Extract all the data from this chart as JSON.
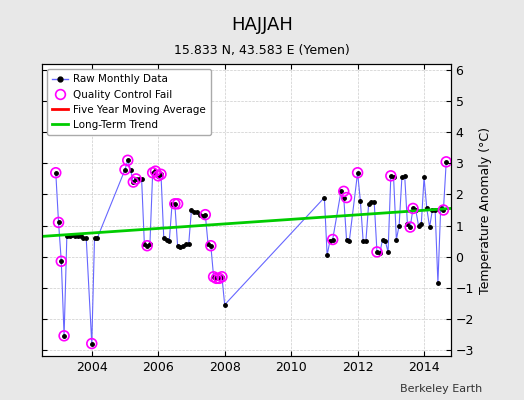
{
  "title": "HAJJAH",
  "subtitle": "15.833 N, 43.583 E (Yemen)",
  "ylabel": "Temperature Anomaly (°C)",
  "credit": "Berkeley Earth",
  "ylim": [
    -3.2,
    6.2
  ],
  "xlim": [
    2002.5,
    2014.8
  ],
  "xticks": [
    2004,
    2006,
    2008,
    2010,
    2012,
    2014
  ],
  "yticks": [
    -3,
    -2,
    -1,
    0,
    1,
    2,
    3,
    4,
    5,
    6
  ],
  "bg_color": "#e8e8e8",
  "plot_bg_color": "#ffffff",
  "raw_x": [
    2002.917,
    2003.0,
    2003.083,
    2003.167,
    2003.25,
    2003.333,
    2003.417,
    2003.5,
    2003.583,
    2003.667,
    2003.75,
    2003.833,
    2004.0,
    2004.083,
    2004.167,
    2005.0,
    2005.083,
    2005.167,
    2005.25,
    2005.333,
    2005.417,
    2005.5,
    2005.583,
    2005.667,
    2005.75,
    2005.833,
    2005.917,
    2006.0,
    2006.083,
    2006.167,
    2006.25,
    2006.333,
    2006.417,
    2006.5,
    2006.583,
    2006.667,
    2006.75,
    2006.833,
    2006.917,
    2007.0,
    2007.083,
    2007.167,
    2007.25,
    2007.333,
    2007.417,
    2007.5,
    2007.583,
    2007.667,
    2007.75,
    2007.833,
    2007.917,
    2008.0,
    2011.0,
    2011.083,
    2011.167,
    2011.25,
    2011.5,
    2011.583,
    2011.667,
    2011.75,
    2012.0,
    2012.083,
    2012.167,
    2012.25,
    2012.333,
    2012.417,
    2012.5,
    2012.583,
    2012.667,
    2012.75,
    2012.833,
    2012.917,
    2013.0,
    2013.083,
    2013.167,
    2013.25,
    2013.333,
    2013.417,
    2013.5,
    2013.583,
    2013.667,
    2013.75,
    2013.833,
    2013.917,
    2014.0,
    2014.083,
    2014.167,
    2014.25,
    2014.333,
    2014.417,
    2014.5,
    2014.583,
    2014.667
  ],
  "raw_y": [
    2.7,
    1.1,
    -0.15,
    -2.55,
    0.65,
    0.65,
    0.7,
    0.65,
    0.65,
    0.65,
    0.6,
    0.6,
    -2.8,
    0.6,
    0.6,
    2.8,
    3.1,
    2.8,
    2.4,
    2.5,
    2.5,
    2.5,
    0.4,
    0.35,
    0.4,
    2.7,
    2.75,
    2.6,
    2.65,
    0.6,
    0.55,
    0.5,
    1.7,
    1.7,
    0.35,
    0.3,
    0.35,
    0.4,
    0.4,
    1.5,
    1.45,
    1.45,
    1.35,
    1.3,
    1.35,
    0.4,
    0.35,
    -0.65,
    -0.7,
    -0.7,
    -0.65,
    -1.55,
    1.9,
    0.05,
    0.5,
    0.55,
    2.1,
    1.9,
    0.55,
    0.5,
    2.7,
    1.8,
    0.5,
    0.5,
    1.7,
    1.75,
    1.75,
    0.15,
    0.1,
    0.55,
    0.5,
    0.15,
    2.6,
    2.55,
    0.55,
    1.0,
    2.55,
    2.6,
    1.05,
    0.95,
    1.55,
    1.5,
    1.0,
    1.05,
    2.55,
    1.55,
    0.95,
    1.5,
    1.5,
    -0.85,
    1.55,
    1.5,
    3.05
  ],
  "qc_fail_x": [
    2002.917,
    2003.0,
    2003.083,
    2003.167,
    2004.0,
    2005.0,
    2005.083,
    2005.25,
    2005.333,
    2005.667,
    2005.833,
    2005.917,
    2006.0,
    2006.083,
    2006.5,
    2006.583,
    2007.417,
    2007.583,
    2007.667,
    2007.75,
    2007.833,
    2007.917,
    2011.25,
    2011.583,
    2011.667,
    2012.0,
    2012.583,
    2013.0,
    2013.583,
    2013.667,
    2014.583,
    2014.667
  ],
  "qc_fail_y": [
    2.7,
    1.1,
    -0.15,
    -2.55,
    -2.8,
    2.8,
    3.1,
    2.4,
    2.5,
    0.35,
    2.7,
    2.75,
    2.6,
    2.65,
    1.7,
    1.7,
    1.35,
    0.35,
    -0.65,
    -0.7,
    -0.7,
    -0.65,
    0.55,
    2.1,
    1.9,
    2.7,
    0.15,
    2.6,
    0.95,
    1.55,
    1.5,
    3.05
  ],
  "trend_x": [
    2002.5,
    2014.8
  ],
  "trend_y": [
    0.65,
    1.55
  ],
  "ma_color": "#ff0000",
  "trend_color": "#00cc00",
  "raw_line_color": "#6666ff",
  "raw_marker_color": "#000000",
  "qc_marker_color": "#ff00ff"
}
